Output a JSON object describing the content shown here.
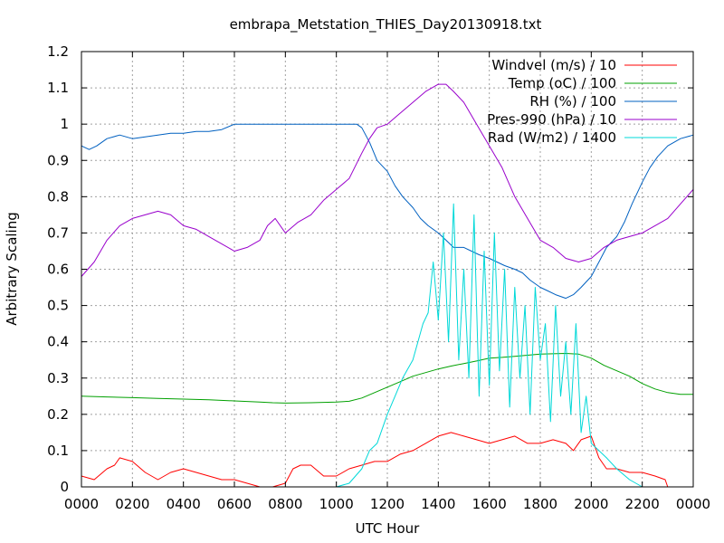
{
  "chart_data": {
    "type": "line",
    "title": "embrapa_Metstation_THIES_Day20130918.txt",
    "xlabel": "UTC Hour",
    "ylabel": "Arbitrary Scaling",
    "xlim": [
      0,
      24
    ],
    "ylim": [
      0,
      1.2
    ],
    "grid": true,
    "legend_position": "top-right",
    "x_ticks": [
      "0000",
      "0200",
      "0400",
      "0600",
      "0800",
      "1000",
      "1200",
      "1400",
      "1600",
      "1800",
      "2000",
      "2200",
      "0000"
    ],
    "y_ticks": [
      "0",
      "0.1",
      "0.2",
      "0.3",
      "0.4",
      "0.5",
      "0.6",
      "0.7",
      "0.8",
      "0.9",
      "1",
      "1.1",
      "1.2"
    ],
    "series": [
      {
        "name": "Windvel (m/s) / 10",
        "color": "#ff0000",
        "x": [
          0,
          0.5,
          1,
          1.3,
          1.5,
          2,
          2.5,
          3,
          3.5,
          4,
          4.5,
          5,
          5.5,
          6,
          6.5,
          7,
          7.5,
          8,
          8.3,
          8.6,
          9,
          9.5,
          10,
          10.5,
          11,
          11.5,
          12,
          12.5,
          13,
          13.5,
          14,
          14.5,
          15,
          15.5,
          16,
          16.5,
          17,
          17.5,
          18,
          18.5,
          19,
          19.3,
          19.6,
          20,
          20.3,
          20.6,
          21,
          21.5,
          22,
          22.5,
          22.9,
          23,
          24
        ],
        "y": [
          0.03,
          0.02,
          0.05,
          0.06,
          0.08,
          0.07,
          0.04,
          0.02,
          0.04,
          0.05,
          0.04,
          0.03,
          0.02,
          0.02,
          0.01,
          0.0,
          0.0,
          0.01,
          0.05,
          0.06,
          0.06,
          0.03,
          0.03,
          0.05,
          0.06,
          0.07,
          0.07,
          0.09,
          0.1,
          0.12,
          0.14,
          0.15,
          0.14,
          0.13,
          0.12,
          0.13,
          0.14,
          0.12,
          0.12,
          0.13,
          0.12,
          0.1,
          0.13,
          0.14,
          0.08,
          0.05,
          0.05,
          0.04,
          0.04,
          0.03,
          0.02,
          0.0,
          0.0
        ]
      },
      {
        "name": "Temp (oC) / 100",
        "color": "#00a000",
        "x": [
          0,
          1,
          2,
          3,
          4,
          5,
          6,
          7,
          7.5,
          8,
          9,
          10,
          10.5,
          11,
          11.5,
          12,
          12.5,
          13,
          13.5,
          14,
          14.5,
          15,
          15.5,
          16,
          16.5,
          17,
          17.5,
          18,
          18.5,
          19,
          19.5,
          20,
          20.5,
          21,
          21.5,
          22,
          22.5,
          23,
          23.5,
          24
        ],
        "y": [
          0.25,
          0.248,
          0.246,
          0.244,
          0.242,
          0.24,
          0.237,
          0.234,
          0.232,
          0.231,
          0.232,
          0.234,
          0.236,
          0.245,
          0.26,
          0.275,
          0.29,
          0.305,
          0.315,
          0.325,
          0.333,
          0.34,
          0.347,
          0.355,
          0.357,
          0.36,
          0.363,
          0.366,
          0.367,
          0.368,
          0.366,
          0.355,
          0.335,
          0.32,
          0.305,
          0.285,
          0.27,
          0.26,
          0.255,
          0.255
        ]
      },
      {
        "name": "RH (%) / 100",
        "color": "#0060c0",
        "x": [
          0,
          0.3,
          0.6,
          1,
          1.5,
          2,
          2.5,
          3,
          3.5,
          4,
          4.5,
          5,
          5.5,
          6,
          6.5,
          7,
          7.5,
          8,
          8.5,
          9,
          9.5,
          10,
          10.5,
          10.8,
          11,
          11.3,
          11.6,
          12,
          12.3,
          12.6,
          13,
          13.3,
          13.6,
          14,
          14.3,
          14.6,
          15,
          15.3,
          15.6,
          16,
          16.3,
          16.6,
          17,
          17.3,
          17.6,
          18,
          18.3,
          18.6,
          19,
          19.3,
          19.6,
          20,
          20.3,
          20.6,
          21,
          21.3,
          21.6,
          22,
          22.3,
          22.6,
          23,
          23.5,
          24
        ],
        "y": [
          0.94,
          0.93,
          0.94,
          0.96,
          0.97,
          0.96,
          0.965,
          0.97,
          0.975,
          0.975,
          0.98,
          0.98,
          0.985,
          1.0,
          1.0,
          1.0,
          1.0,
          1.0,
          1.0,
          1.0,
          1.0,
          1.0,
          1.0,
          1.0,
          0.99,
          0.95,
          0.9,
          0.87,
          0.83,
          0.8,
          0.77,
          0.74,
          0.72,
          0.7,
          0.68,
          0.66,
          0.66,
          0.65,
          0.64,
          0.63,
          0.62,
          0.61,
          0.6,
          0.59,
          0.57,
          0.55,
          0.54,
          0.53,
          0.52,
          0.53,
          0.55,
          0.58,
          0.62,
          0.66,
          0.69,
          0.73,
          0.78,
          0.84,
          0.88,
          0.91,
          0.94,
          0.96,
          0.97
        ]
      },
      {
        "name": "Pres-990 (hPa) / 10",
        "color": "#9900cc",
        "x": [
          0,
          0.5,
          1,
          1.5,
          2,
          2.5,
          3,
          3.5,
          4,
          4.5,
          5,
          5.5,
          6,
          6.5,
          7,
          7.3,
          7.6,
          8,
          8.5,
          9,
          9.5,
          10,
          10.5,
          11,
          11.3,
          11.6,
          12,
          12.5,
          13,
          13.5,
          14,
          14.3,
          14.6,
          15,
          15.5,
          16,
          16.5,
          17,
          17.5,
          18,
          18.5,
          19,
          19.5,
          20,
          20.5,
          21,
          21.5,
          22,
          22.5,
          23,
          23.5,
          24
        ],
        "y": [
          0.58,
          0.62,
          0.68,
          0.72,
          0.74,
          0.75,
          0.76,
          0.75,
          0.72,
          0.71,
          0.69,
          0.67,
          0.65,
          0.66,
          0.68,
          0.72,
          0.74,
          0.7,
          0.73,
          0.75,
          0.79,
          0.82,
          0.85,
          0.92,
          0.96,
          0.99,
          1.0,
          1.03,
          1.06,
          1.09,
          1.11,
          1.11,
          1.09,
          1.06,
          1.0,
          0.94,
          0.88,
          0.8,
          0.74,
          0.68,
          0.66,
          0.63,
          0.62,
          0.63,
          0.66,
          0.68,
          0.69,
          0.7,
          0.72,
          0.74,
          0.78,
          0.82
        ]
      },
      {
        "name": "Rad (W/m2) / 1400",
        "color": "#00d8d8",
        "x": [
          0,
          10,
          10.5,
          11,
          11.3,
          11.6,
          12,
          12.3,
          12.6,
          13,
          13.2,
          13.4,
          13.6,
          13.8,
          14,
          14.2,
          14.4,
          14.6,
          14.8,
          15,
          15.2,
          15.4,
          15.6,
          15.8,
          16,
          16.2,
          16.4,
          16.6,
          16.8,
          17,
          17.2,
          17.4,
          17.6,
          17.8,
          18,
          18.2,
          18.4,
          18.6,
          18.8,
          19,
          19.2,
          19.4,
          19.6,
          19.8,
          20,
          20.3,
          20.6,
          21,
          21.5,
          22,
          24
        ],
        "y": [
          0,
          0,
          0.01,
          0.05,
          0.1,
          0.12,
          0.2,
          0.25,
          0.3,
          0.35,
          0.4,
          0.45,
          0.48,
          0.62,
          0.46,
          0.7,
          0.4,
          0.78,
          0.35,
          0.6,
          0.3,
          0.75,
          0.25,
          0.65,
          0.28,
          0.7,
          0.32,
          0.6,
          0.22,
          0.55,
          0.3,
          0.5,
          0.2,
          0.55,
          0.35,
          0.45,
          0.18,
          0.5,
          0.25,
          0.4,
          0.2,
          0.45,
          0.15,
          0.25,
          0.12,
          0.1,
          0.08,
          0.05,
          0.02,
          0.0,
          0.0
        ]
      }
    ]
  }
}
